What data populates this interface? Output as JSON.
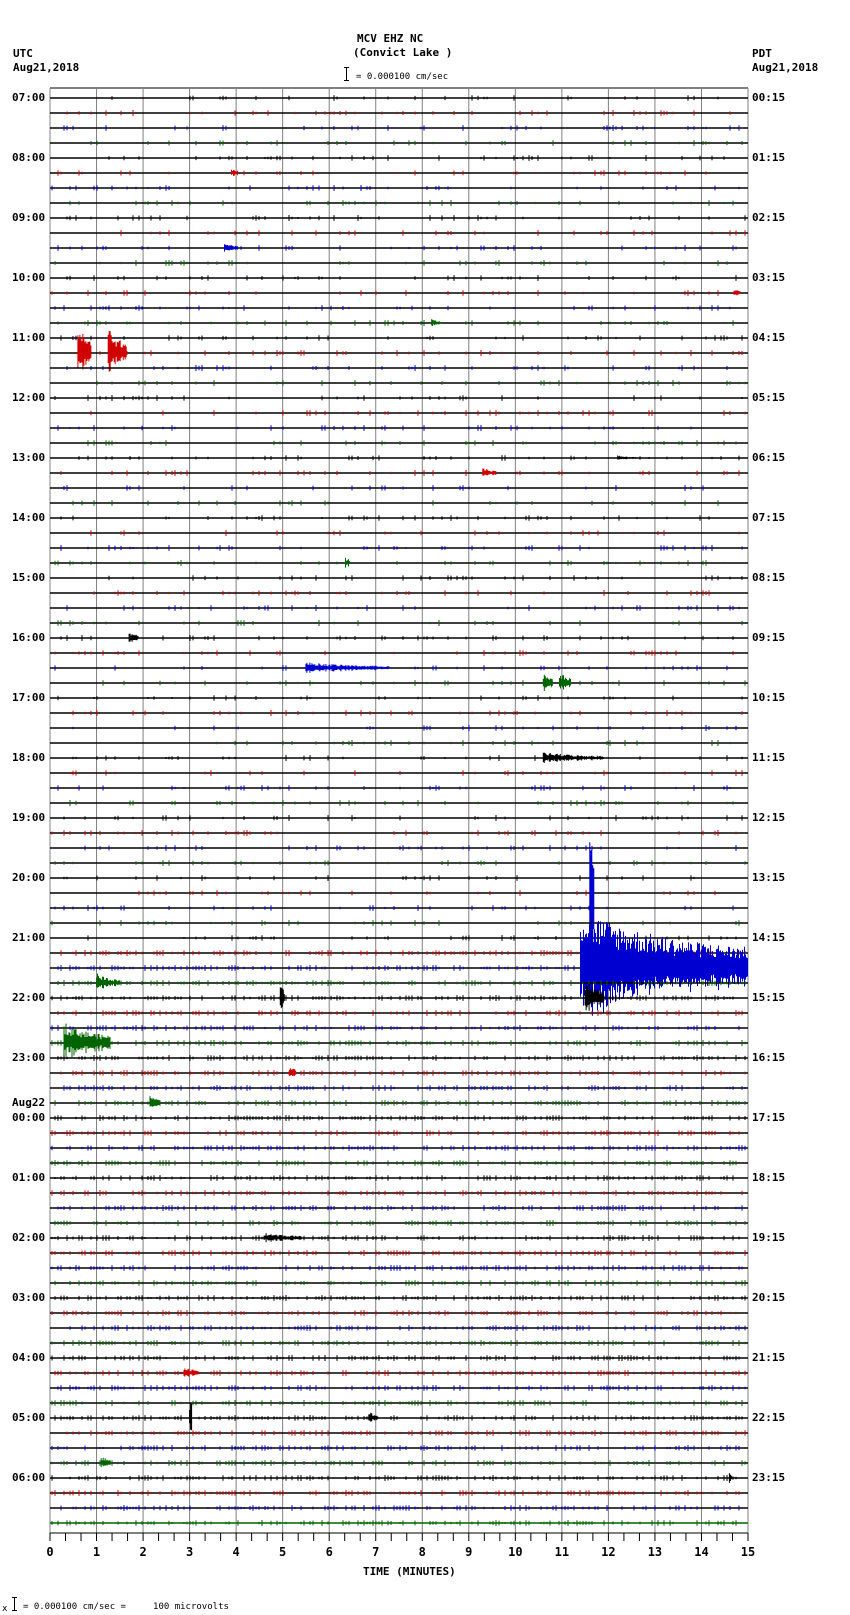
{
  "header": {
    "station": "MCV EHZ NC",
    "location": "(Convict Lake )",
    "scale_text": "= 0.000100 cm/sec",
    "left_tz": "UTC",
    "left_date": "Aug21,2018",
    "right_tz": "PDT",
    "right_date": "Aug21,2018"
  },
  "footer": {
    "prefix": "x",
    "scale_text": "= 0.000100 cm/sec =     100 microvolts"
  },
  "chart_data": {
    "type": "line",
    "title": "MCV EHZ NC (Convict Lake ) helicorder, Aug21,2018",
    "xlabel": "TIME (MINUTES)",
    "ylabel": "",
    "x_ticks": [
      "0",
      "1",
      "2",
      "3",
      "4",
      "5",
      "6",
      "7",
      "8",
      "9",
      "10",
      "11",
      "12",
      "13",
      "14",
      "15"
    ],
    "xlim": [
      0,
      15
    ],
    "minor_tick_step_minutes": 0.333,
    "grid": true,
    "traces_per_hour": 4,
    "trace_minutes": 15,
    "trace_count": 96,
    "trace_colors": [
      "#000000",
      "#d00000",
      "#0000d0",
      "#006400"
    ],
    "left_labels": [
      {
        "trace": 0,
        "text": "07:00"
      },
      {
        "trace": 4,
        "text": "08:00"
      },
      {
        "trace": 8,
        "text": "09:00"
      },
      {
        "trace": 12,
        "text": "10:00"
      },
      {
        "trace": 16,
        "text": "11:00"
      },
      {
        "trace": 20,
        "text": "12:00"
      },
      {
        "trace": 24,
        "text": "13:00"
      },
      {
        "trace": 28,
        "text": "14:00"
      },
      {
        "trace": 32,
        "text": "15:00"
      },
      {
        "trace": 36,
        "text": "16:00"
      },
      {
        "trace": 40,
        "text": "17:00"
      },
      {
        "trace": 44,
        "text": "18:00"
      },
      {
        "trace": 48,
        "text": "19:00"
      },
      {
        "trace": 52,
        "text": "20:00"
      },
      {
        "trace": 56,
        "text": "21:00"
      },
      {
        "trace": 60,
        "text": "22:00"
      },
      {
        "trace": 64,
        "text": "23:00"
      },
      {
        "trace": 67,
        "text": "Aug22"
      },
      {
        "trace": 68,
        "text": "00:00"
      },
      {
        "trace": 72,
        "text": "01:00"
      },
      {
        "trace": 76,
        "text": "02:00"
      },
      {
        "trace": 80,
        "text": "03:00"
      },
      {
        "trace": 84,
        "text": "04:00"
      },
      {
        "trace": 88,
        "text": "05:00"
      },
      {
        "trace": 92,
        "text": "06:00"
      }
    ],
    "right_labels": [
      {
        "trace": 0,
        "text": "00:15"
      },
      {
        "trace": 4,
        "text": "01:15"
      },
      {
        "trace": 8,
        "text": "02:15"
      },
      {
        "trace": 12,
        "text": "03:15"
      },
      {
        "trace": 16,
        "text": "04:15"
      },
      {
        "trace": 20,
        "text": "05:15"
      },
      {
        "trace": 24,
        "text": "06:15"
      },
      {
        "trace": 28,
        "text": "07:15"
      },
      {
        "trace": 32,
        "text": "08:15"
      },
      {
        "trace": 36,
        "text": "09:15"
      },
      {
        "trace": 40,
        "text": "10:15"
      },
      {
        "trace": 44,
        "text": "11:15"
      },
      {
        "trace": 48,
        "text": "12:15"
      },
      {
        "trace": 52,
        "text": "13:15"
      },
      {
        "trace": 56,
        "text": "14:15"
      },
      {
        "trace": 60,
        "text": "15:15"
      },
      {
        "trace": 64,
        "text": "16:15"
      },
      {
        "trace": 68,
        "text": "17:15"
      },
      {
        "trace": 72,
        "text": "18:15"
      },
      {
        "trace": 76,
        "text": "19:15"
      },
      {
        "trace": 80,
        "text": "20:15"
      },
      {
        "trace": 84,
        "text": "21:15"
      },
      {
        "trace": 88,
        "text": "22:15"
      },
      {
        "trace": 92,
        "text": "23:15"
      }
    ],
    "events": [
      {
        "trace": 5,
        "minute": 3.9,
        "amp": 4,
        "dur": 0.15,
        "note": "small red blip"
      },
      {
        "trace": 10,
        "minute": 3.75,
        "amp": 5,
        "dur": 0.3,
        "note": "small blue event"
      },
      {
        "trace": 13,
        "minute": 14.7,
        "amp": 4,
        "dur": 0.15
      },
      {
        "trace": 15,
        "minute": 8.2,
        "amp": 4,
        "dur": 0.2
      },
      {
        "trace": 17,
        "minute": 0.6,
        "amp": 30,
        "dur": 0.3,
        "note": "large red spikes (calibration/step pulses)"
      },
      {
        "trace": 17,
        "minute": 1.25,
        "amp": 28,
        "dur": 0.4
      },
      {
        "trace": 24,
        "minute": 12.2,
        "amp": 3,
        "dur": 0.4
      },
      {
        "trace": 25,
        "minute": 9.3,
        "amp": 6,
        "dur": 0.3
      },
      {
        "trace": 31,
        "minute": 6.35,
        "amp": 6,
        "dur": 0.1
      },
      {
        "trace": 36,
        "minute": 1.7,
        "amp": 6,
        "dur": 0.2
      },
      {
        "trace": 38,
        "minute": 5.5,
        "amp": 6,
        "dur": 1.8,
        "note": "blue regional event"
      },
      {
        "trace": 39,
        "minute": 10.6,
        "amp": 10,
        "dur": 0.2,
        "note": "green local pair"
      },
      {
        "trace": 39,
        "minute": 10.95,
        "amp": 12,
        "dur": 0.25
      },
      {
        "trace": 44,
        "minute": 10.6,
        "amp": 6,
        "dur": 1.3,
        "note": "black event"
      },
      {
        "trace": 54,
        "minute": 11.6,
        "amp": 90,
        "dur": 0.1,
        "note": "start of large teleseism / regional quake"
      },
      {
        "trace": 58,
        "minute": 11.4,
        "amp": 60,
        "dur": 3.6,
        "note": "major earthquake coda on blue trace"
      },
      {
        "trace": 59,
        "minute": 1.0,
        "amp": 10,
        "dur": 0.5
      },
      {
        "trace": 60,
        "minute": 4.95,
        "amp": 14,
        "dur": 0.1
      },
      {
        "trace": 60,
        "minute": 11.5,
        "amp": 20,
        "dur": 0.4
      },
      {
        "trace": 63,
        "minute": 0.3,
        "amp": 22,
        "dur": 1.0,
        "note": "green local event"
      },
      {
        "trace": 65,
        "minute": 5.15,
        "amp": 6,
        "dur": 0.15
      },
      {
        "trace": 67,
        "minute": 2.15,
        "amp": 8,
        "dur": 0.2
      },
      {
        "trace": 76,
        "minute": 4.6,
        "amp": 6,
        "dur": 0.8
      },
      {
        "trace": 85,
        "minute": 2.9,
        "amp": 7,
        "dur": 0.3
      },
      {
        "trace": 88,
        "minute": 3.0,
        "amp": 18,
        "dur": 0.05
      },
      {
        "trace": 88,
        "minute": 6.85,
        "amp": 7,
        "dur": 0.2
      },
      {
        "trace": 91,
        "minute": 1.1,
        "amp": 7,
        "dur": 0.2
      },
      {
        "trace": 92,
        "minute": 14.6,
        "amp": 5,
        "dur": 0.05
      }
    ]
  }
}
